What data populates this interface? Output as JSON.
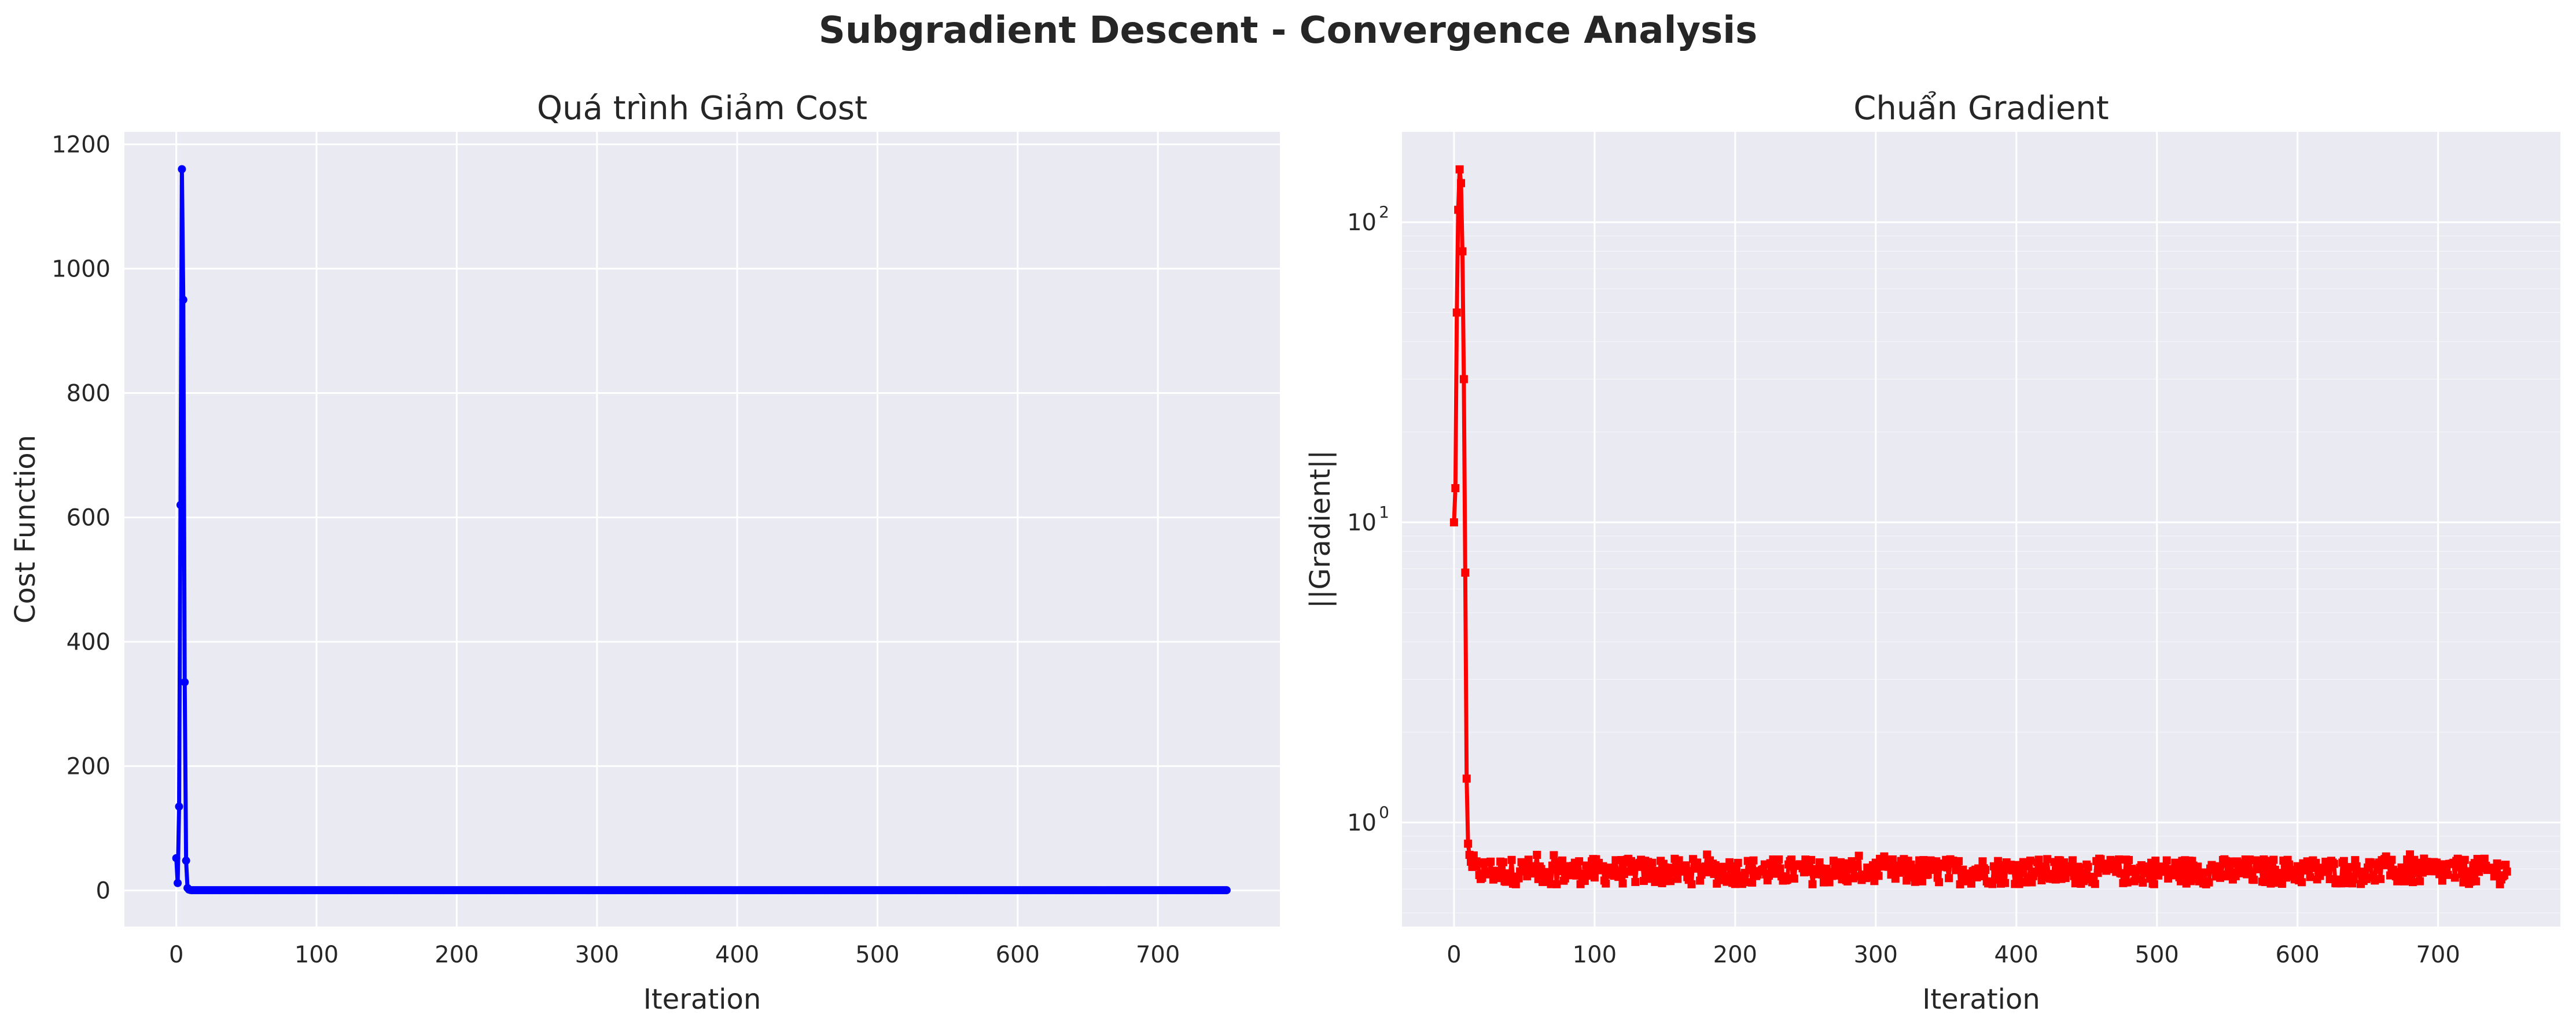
{
  "figure": {
    "suptitle": "Subgradient Descent - Convergence Analysis",
    "background": "#eaeaf2",
    "grid_color": "#ffffff"
  },
  "chart_data": [
    {
      "type": "line",
      "title": "Quá trình Giảm Cost",
      "xlabel": "Iteration",
      "ylabel": "Cost Function",
      "xlim": [
        -37,
        787
      ],
      "ylim": [
        -58,
        1220
      ],
      "xticks": [
        0,
        100,
        200,
        300,
        400,
        500,
        600,
        700
      ],
      "yticks": [
        0,
        200,
        400,
        600,
        800,
        1000,
        1200
      ],
      "yscale": "linear",
      "grid": true,
      "marker": "circle",
      "color": "#0000ff",
      "series": [
        {
          "x": [
            0,
            1,
            2,
            3,
            4,
            5,
            6,
            7,
            8,
            9,
            10,
            11,
            12,
            13,
            14,
            15,
            20,
            30,
            50,
            100,
            200,
            300,
            400,
            500,
            600,
            700,
            749
          ],
          "values": [
            52,
            12,
            135,
            620,
            1160,
            950,
            335,
            48,
            4,
            1.5,
            0.8,
            0.5,
            0.5,
            0.5,
            0.5,
            0.5,
            0.5,
            0.5,
            0.5,
            0.5,
            0.5,
            0.5,
            0.5,
            0.5,
            0.5,
            0.5,
            0.5
          ]
        }
      ]
    },
    {
      "type": "line",
      "title": "Chuẩn Gradient",
      "xlabel": "Iteration",
      "ylabel": "||Gradient||",
      "xlim": [
        -37,
        787
      ],
      "ylim": [
        0.45,
        200
      ],
      "xticks": [
        0,
        100,
        200,
        300,
        400,
        500,
        600,
        700
      ],
      "yticks": [
        {
          "base": "10",
          "exp": "0",
          "value": 1
        },
        {
          "base": "10",
          "exp": "1",
          "value": 10
        },
        {
          "base": "10",
          "exp": "2",
          "value": 100
        }
      ],
      "yscale": "log",
      "grid": true,
      "marker": "square",
      "color": "#ff0000",
      "series": [
        {
          "x": [
            0,
            1,
            2,
            3,
            4,
            5,
            6,
            7,
            8,
            9,
            10,
            11,
            12
          ],
          "values": [
            10,
            13,
            50,
            110,
            150,
            135,
            80,
            30,
            6.8,
            1.4,
            0.85,
            0.78,
            0.74
          ],
          "steady_state": {
            "x_start": 13,
            "x_end": 749,
            "center": 0.69,
            "min": 0.63,
            "max": 0.79
          }
        }
      ]
    }
  ]
}
